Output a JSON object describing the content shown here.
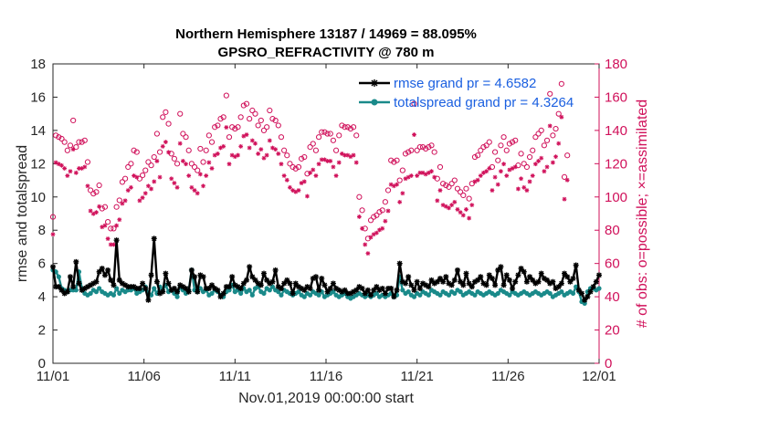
{
  "chart_data": {
    "type": "line",
    "title": "Northern Hemisphere 13187 / 14969 = 88.095%",
    "subtitle": "GPSRO_REFRACTIVITY @ 780 m",
    "xlabel": "Nov.01,2019 00:00:00 start",
    "ylabel": "rmse and totalspread",
    "y2label": "# of obs: o=possible; ×=assimilated",
    "xlim": [
      0,
      30
    ],
    "ylim": [
      0,
      18
    ],
    "y2lim": [
      0,
      180
    ],
    "x_ticks": [
      0,
      5,
      10,
      15,
      20,
      25,
      30
    ],
    "x_tick_labels": [
      "11/01",
      "11/06",
      "11/11",
      "11/16",
      "11/21",
      "11/26",
      "12/01"
    ],
    "y_ticks": [
      0,
      2,
      4,
      6,
      8,
      10,
      12,
      14,
      16,
      18
    ],
    "y_tick_labels": [
      "0",
      "2",
      "4",
      "6",
      "8",
      "10",
      "12",
      "14",
      "16",
      "18"
    ],
    "y2_ticks": [
      0,
      20,
      40,
      60,
      80,
      100,
      120,
      140,
      160,
      180
    ],
    "y2_tick_labels": [
      "0",
      "20",
      "40",
      "60",
      "80",
      "100",
      "120",
      "140",
      "160",
      "180"
    ],
    "legend_location": "top-right",
    "series": [
      {
        "name": "rmse grand pr = 4.6582",
        "color": "#000000",
        "marker": "asterisk",
        "values": [
          5.8,
          4.6,
          4.6,
          4.4,
          4.2,
          4.3,
          5.2,
          4.6,
          6.1,
          4.8,
          4.4,
          4.5,
          4.6,
          4.7,
          4.8,
          4.9,
          5.5,
          5.7,
          5.3,
          5.6,
          5.0,
          4.7,
          7.4,
          5.0,
          4.8,
          4.7,
          4.6,
          4.6,
          4.6,
          4.5,
          4.5,
          4.8,
          4.5,
          3.8,
          5.3,
          7.5,
          4.9,
          4.2,
          4.3,
          5.4,
          4.8,
          4.4,
          4.5,
          4.3,
          4.7,
          4.6,
          4.5,
          4.3,
          5.6,
          5.2,
          4.3,
          5.3,
          5.2,
          4.5,
          4.5,
          4.7,
          4.5,
          4.4,
          4.0,
          4.2,
          4.6,
          4.6,
          5.2,
          4.7,
          4.6,
          4.5,
          4.8,
          5.0,
          5.8,
          5.2,
          5.0,
          4.8,
          4.7,
          5.4,
          5.0,
          4.8,
          4.9,
          5.6,
          4.6,
          4.5,
          4.8,
          5.0,
          4.8,
          4.2,
          4.8,
          4.6,
          4.5,
          4.4,
          4.6,
          4.5,
          5.1,
          5.2,
          4.4,
          5.1,
          4.7,
          4.3,
          4.5,
          4.8,
          4.5,
          4.4,
          4.3,
          4.4,
          4.2,
          4.2,
          4.3,
          4.4,
          4.6,
          4.5,
          4.2,
          4.4,
          4.1,
          4.4,
          4.6,
          4.4,
          4.5,
          4.2,
          4.5,
          4.5,
          4.0,
          4.4,
          6.0,
          4.9,
          4.8,
          5.2,
          4.7,
          4.4,
          4.9,
          4.5,
          4.8,
          4.7,
          4.6,
          5.0,
          4.8,
          4.9,
          5.1,
          4.9,
          5.2,
          4.8,
          4.7,
          5.0,
          5.6,
          4.9,
          4.7,
          5.4,
          4.8,
          4.6,
          4.9,
          5.0,
          5.2,
          4.8,
          4.7,
          5.3,
          5.1,
          4.7,
          5.6,
          5.8,
          4.7,
          5.3,
          5.0,
          4.5,
          4.9,
          5.3,
          5.7,
          5.5,
          4.9,
          5.2,
          5.0,
          4.8,
          4.9,
          5.4,
          5.1,
          5.0,
          4.8,
          4.9,
          4.5,
          4.6,
          4.8,
          5.4,
          5.2,
          4.9,
          5.1,
          5.9,
          4.4,
          4.2,
          3.8,
          4.0,
          4.3,
          4.6,
          4.9,
          5.3
        ]
      },
      {
        "name": "totalspread grand pr = 4.3264",
        "color": "#1a8a8a",
        "marker": "dot",
        "values": [
          5.6,
          5.5,
          5.2,
          4.5,
          4.4,
          4.3,
          4.4,
          4.4,
          4.4,
          5.5,
          4.5,
          4.2,
          4.1,
          4.2,
          4.4,
          4.3,
          4.5,
          4.3,
          4.2,
          4.1,
          4.2,
          4.1,
          4.5,
          4.2,
          4.4,
          4.3,
          4.4,
          4.4,
          4.5,
          4.2,
          4.3,
          4.4,
          4.6,
          4.2,
          4.1,
          4.5,
          4.2,
          4.6,
          4.4,
          4.7,
          4.3,
          4.4,
          4.2,
          4.0,
          4.6,
          4.4,
          4.2,
          4.4,
          5.6,
          4.4,
          4.3,
          4.5,
          4.3,
          4.4,
          4.1,
          4.2,
          4.4,
          4.3,
          4.1,
          4.0,
          4.3,
          4.4,
          4.7,
          4.3,
          4.4,
          4.2,
          4.5,
          4.3,
          4.4,
          4.1,
          4.5,
          4.6,
          4.3,
          4.2,
          4.5,
          4.4,
          4.6,
          4.4,
          4.3,
          4.1,
          4.4,
          4.3,
          4.2,
          4.1,
          4.2,
          4.3,
          4.1,
          4.0,
          4.2,
          4.1,
          4.3,
          4.2,
          4.1,
          4.3,
          4.0,
          4.1,
          4.2,
          4.3,
          4.1,
          4.0,
          4.1,
          4.2,
          4.0,
          3.9,
          4.0,
          4.1,
          4.2,
          4.1,
          4.0,
          4.1,
          4.0,
          4.1,
          4.2,
          4.0,
          4.1,
          4.0,
          4.1,
          4.2,
          4.0,
          4.1,
          5.2,
          4.4,
          4.2,
          4.3,
          4.1,
          4.0,
          4.2,
          4.1,
          4.3,
          4.2,
          4.1,
          4.4,
          4.3,
          4.2,
          4.1,
          4.3,
          4.2,
          4.1,
          4.3,
          4.2,
          4.4,
          4.3,
          4.1,
          4.2,
          4.3,
          4.2,
          4.1,
          4.3,
          4.2,
          4.1,
          4.2,
          4.3,
          4.2,
          4.1,
          4.2,
          4.4,
          4.3,
          4.2,
          4.1,
          4.3,
          4.2,
          4.1,
          4.2,
          4.3,
          4.2,
          4.1,
          4.2,
          4.3,
          4.2,
          4.1,
          4.2,
          4.3,
          4.2,
          4.0,
          4.1,
          4.2,
          4.3,
          4.1,
          4.2,
          4.3,
          4.2,
          4.6,
          4.3,
          3.7,
          3.6,
          4.3,
          4.5,
          4.5,
          4.4,
          4.5
        ]
      }
    ],
    "obs_possible": [
      88,
      137,
      136,
      135,
      133,
      128,
      131,
      146,
      130,
      133,
      133,
      134,
      121,
      104,
      102,
      103,
      107,
      93,
      94,
      85,
      81,
      81,
      94,
      98,
      109,
      111,
      118,
      120,
      128,
      127,
      111,
      113,
      116,
      121,
      119,
      124,
      138,
      127,
      148,
      151,
      144,
      126,
      123,
      120,
      150,
      138,
      136,
      128,
      120,
      118,
      116,
      129,
      121,
      128,
      137,
      133,
      142,
      143,
      147,
      148,
      161,
      136,
      142,
      141,
      142,
      148,
      155,
      156,
      147,
      152,
      150,
      143,
      146,
      140,
      142,
      152,
      147,
      146,
      143,
      136,
      128,
      125,
      120,
      118,
      117,
      118,
      123,
      124,
      114,
      130,
      132,
      128,
      136,
      139,
      139,
      138,
      138,
      134,
      128,
      137,
      143,
      142,
      142,
      141,
      142,
      137,
      100,
      92,
      81,
      75,
      86,
      88,
      89,
      91,
      92,
      97,
      104,
      122,
      121,
      122,
      110,
      116,
      126,
      127,
      128,
      156,
      128,
      130,
      130,
      129,
      130,
      131,
      127,
      111,
      118,
      108,
      107,
      106,
      108,
      110,
      105,
      103,
      101,
      105,
      99,
      108,
      124,
      125,
      128,
      130,
      131,
      133,
      118,
      127,
      122,
      131,
      136,
      128,
      132,
      133,
      134,
      119,
      126,
      120,
      118,
      124,
      128,
      136,
      138,
      140,
      131,
      134,
      162,
      137,
      141,
      150,
      168,
      112,
      125
    ]
  }
}
